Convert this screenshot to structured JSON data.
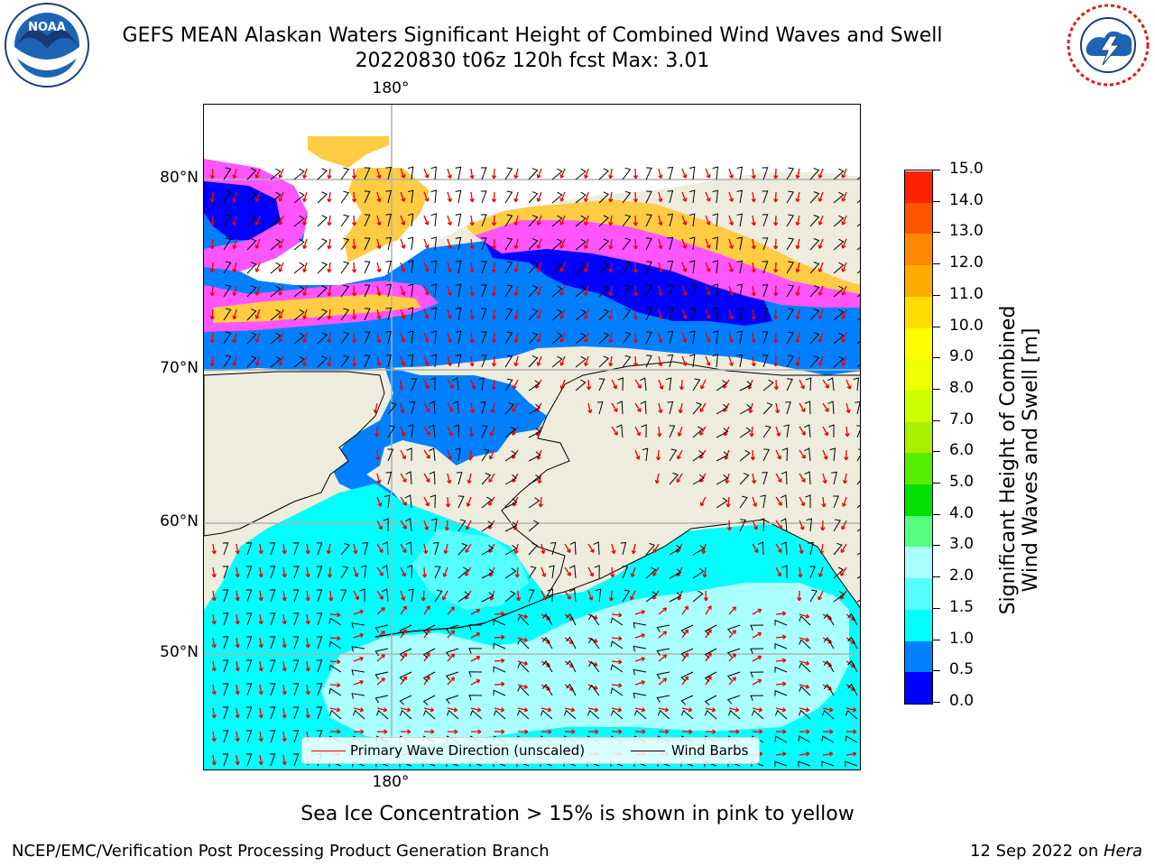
{
  "header": {
    "title": "GEFS MEAN Alaskan Waters Significant Height of Combined Wind Waves and Swell",
    "subtitle": "20220830 t06z 120h fcst   Max: 3.01"
  },
  "logos": {
    "left": {
      "name": "noaa-logo",
      "text": "NOAA"
    },
    "right": {
      "name": "nws-logo"
    }
  },
  "map": {
    "lat_labels": [
      "80°N",
      "70°N",
      "60°N",
      "50°N"
    ],
    "lon_label_top": "180°",
    "lon_label_bottom": "180°",
    "colors": {
      "ocean_high": "#aaffff",
      "ocean_mid": "#00ffff",
      "ocean_low": "#0080ff",
      "ocean_min": "#0000ff",
      "land": "#eeecdc",
      "ice_pink": "#ff55ff",
      "ice_yellow": "#ffcc44",
      "arrow": "#ee0000",
      "barb": "#000000"
    }
  },
  "legend": {
    "wave_direction": "Primary Wave Direction (unscaled)",
    "wind_barbs": "Wind Barbs"
  },
  "colorbar": {
    "label_line1": "Significant Height of Combined",
    "label_line2": "Wind Waves and Swell [m]",
    "ticks": [
      "15.0",
      "14.0",
      "13.0",
      "12.0",
      "11.0",
      "10.0",
      "9.0",
      "8.0",
      "7.0",
      "6.0",
      "5.0",
      "4.0",
      "3.0",
      "2.0",
      "1.5",
      "1.0",
      "0.5",
      "0.0"
    ],
    "colors": [
      "#0000ff",
      "#0080ff",
      "#00ffff",
      "#55ffff",
      "#aaffff",
      "#55ff80",
      "#00e000",
      "#55ee00",
      "#aaee00",
      "#ccff00",
      "#eeff00",
      "#ffff00",
      "#ffdd00",
      "#ffaa00",
      "#ff8800",
      "#ff5500",
      "#ff2200",
      "#ff0000"
    ]
  },
  "caption": "Sea Ice Concentration > 15% is shown in pink to yellow",
  "footer": {
    "left": "NCEP/EMC/Verification Post Processing Product Generation Branch",
    "right_date": "12 Sep 2022 on ",
    "right_machine": "Hera"
  }
}
